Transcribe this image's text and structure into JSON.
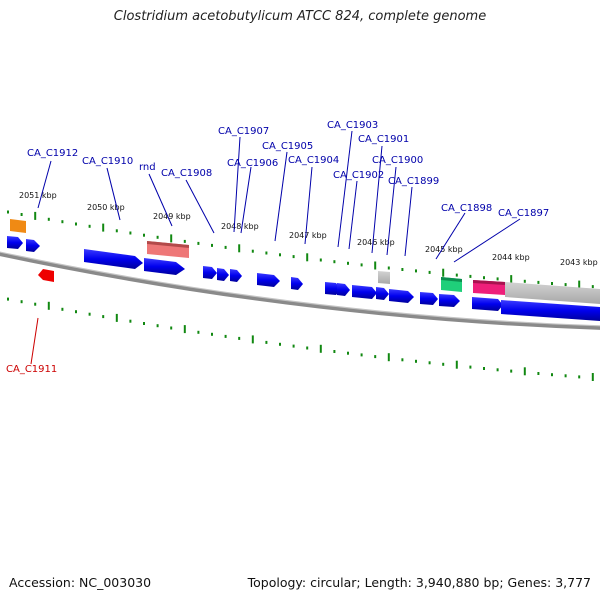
{
  "title": "Clostridium acetobutylicum ATCC 824, complete genome",
  "accession": "Accession: NC_003030",
  "summary": "Topology: circular; Length: 3,940,880 bp; Genes: 3,777",
  "colors": {
    "forward_gene": "#0000ee",
    "reverse_gene": "#ee0000",
    "label_forward": "#0000aa",
    "label_reverse": "#cc0000",
    "tick": "#118811",
    "backbone": "#777777",
    "rna_pink": "#ee1f7a",
    "rna_green": "#1fcf7a",
    "rna_orange": "#f08a14",
    "rna_salmon": "#ee7777",
    "other_gray": "#bbbbbb"
  },
  "ticks": [
    {
      "label": "2051 kbp"
    },
    {
      "label": "2050 kbp"
    },
    {
      "label": "2049 kbp"
    },
    {
      "label": "2048 kbp"
    },
    {
      "label": "2047 kbp"
    },
    {
      "label": "2046 kbp"
    },
    {
      "label": "2045 kbp"
    },
    {
      "label": "2044 kbp"
    },
    {
      "label": "2043 kbp"
    }
  ],
  "gene_labels": [
    {
      "text": "CA_C1912",
      "strand": "forward"
    },
    {
      "text": "CA_C1910",
      "strand": "forward"
    },
    {
      "text": "rnd",
      "strand": "forward"
    },
    {
      "text": "CA_C1908",
      "strand": "forward"
    },
    {
      "text": "CA_C1907",
      "strand": "forward"
    },
    {
      "text": "CA_C1906",
      "strand": "forward"
    },
    {
      "text": "CA_C1905",
      "strand": "forward"
    },
    {
      "text": "CA_C1904",
      "strand": "forward"
    },
    {
      "text": "CA_C1903",
      "strand": "forward"
    },
    {
      "text": "CA_C1902",
      "strand": "forward"
    },
    {
      "text": "CA_C1901",
      "strand": "forward"
    },
    {
      "text": "CA_C1900",
      "strand": "forward"
    },
    {
      "text": "CA_C1899",
      "strand": "forward"
    },
    {
      "text": "CA_C1898",
      "strand": "forward"
    },
    {
      "text": "CA_C1897",
      "strand": "forward"
    },
    {
      "text": "CA_C1911",
      "strand": "reverse"
    }
  ]
}
